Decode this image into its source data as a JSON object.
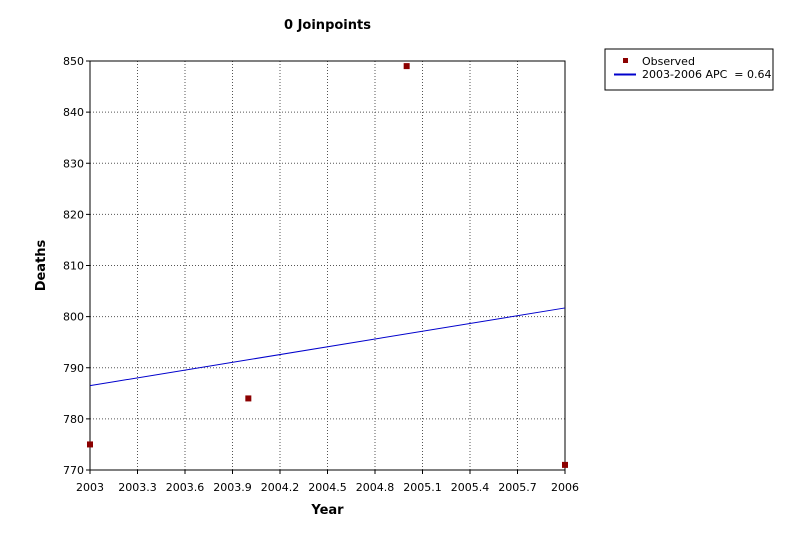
{
  "chart_data": {
    "type": "scatter",
    "title": "0 Joinpoints",
    "xlabel": "Year",
    "ylabel": "Deaths",
    "xlim": [
      2003,
      2006
    ],
    "ylim": [
      770,
      850
    ],
    "x_ticks": [
      "2003",
      "2003.3",
      "2003.6",
      "2003.9",
      "2004.2",
      "2004.5",
      "2004.8",
      "2005.1",
      "2005.4",
      "2005.7",
      "2006"
    ],
    "y_ticks": [
      "770",
      "780",
      "790",
      "800",
      "810",
      "820",
      "830",
      "840",
      "850"
    ],
    "grid": true,
    "legend_position": "top-right-outside",
    "series": [
      {
        "name": "Observed",
        "kind": "markers",
        "color": "#8b0000",
        "points": [
          {
            "x": 2003,
            "y": 775
          },
          {
            "x": 2004,
            "y": 784
          },
          {
            "x": 2005,
            "y": 849
          },
          {
            "x": 2006,
            "y": 771
          }
        ]
      },
      {
        "name": "2003-2006 APC  = 0.64",
        "kind": "line",
        "color": "#0000cc",
        "points": [
          {
            "x": 2003,
            "y": 786.5
          },
          {
            "x": 2006,
            "y": 801.7
          }
        ]
      }
    ]
  }
}
